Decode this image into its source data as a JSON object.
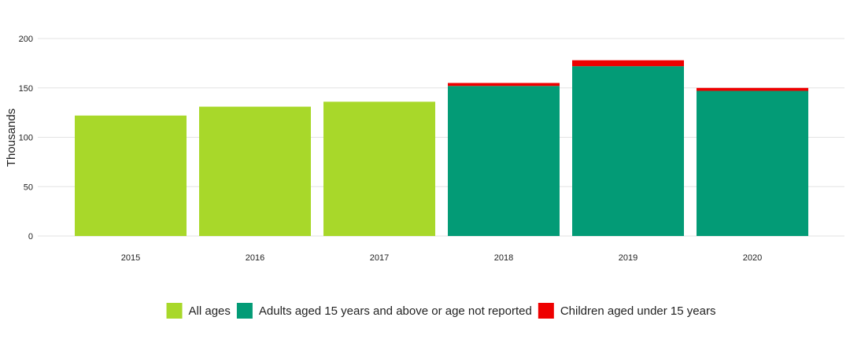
{
  "chart_data": {
    "type": "bar",
    "stacked": true,
    "title": "",
    "xlabel": "",
    "ylabel": "Thousands",
    "ylim": [
      0,
      200
    ],
    "yticks": [
      0,
      50,
      100,
      150,
      200
    ],
    "grid": true,
    "legend_position": "bottom",
    "categories": [
      "2015",
      "2016",
      "2017",
      "2018",
      "2019",
      "2020"
    ],
    "series": [
      {
        "name": "All ages",
        "color": "#a8d82a",
        "values": [
          122,
          131,
          136,
          null,
          null,
          null
        ]
      },
      {
        "name": "Adults aged 15 years and above or age not reported",
        "color": "#039b76",
        "values": [
          null,
          null,
          null,
          152,
          172,
          147
        ]
      },
      {
        "name": "Children aged under 15 years",
        "color": "#ee0000",
        "values": [
          null,
          null,
          null,
          3,
          6,
          3
        ]
      }
    ]
  }
}
